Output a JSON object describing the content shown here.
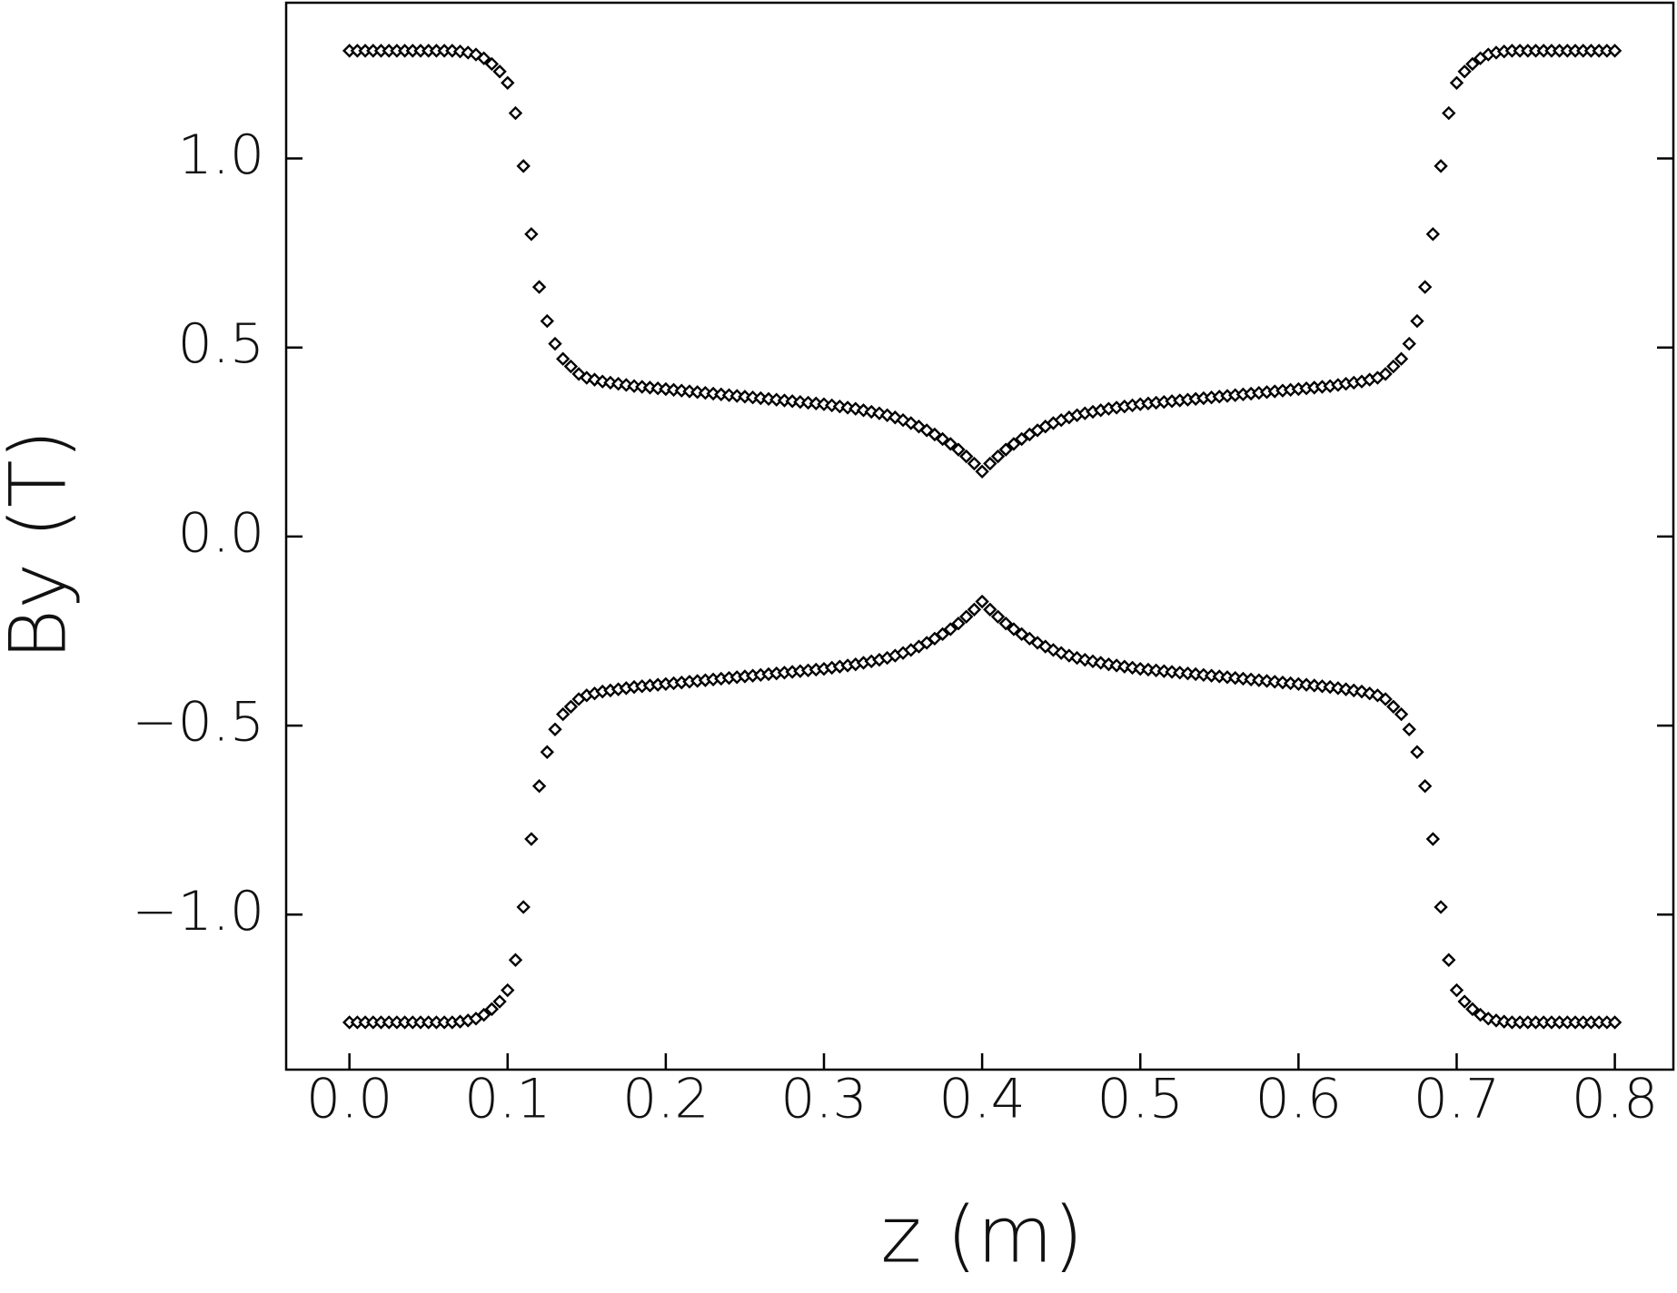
{
  "chart_data": {
    "type": "scatter",
    "xlabel": "z (m)",
    "ylabel": "By (T)",
    "x": [
      0,
      0.005,
      0.01,
      0.015,
      0.02,
      0.025,
      0.03,
      0.035,
      0.04,
      0.045,
      0.05,
      0.055,
      0.06,
      0.065,
      0.07,
      0.075,
      0.08,
      0.085,
      0.09,
      0.095,
      0.1,
      0.105,
      0.11,
      0.115,
      0.12,
      0.125,
      0.13,
      0.135,
      0.14,
      0.145,
      0.15,
      0.155,
      0.16,
      0.165,
      0.17,
      0.175,
      0.18,
      0.185,
      0.19,
      0.195,
      0.2,
      0.205,
      0.21,
      0.215,
      0.22,
      0.225,
      0.23,
      0.235,
      0.24,
      0.245,
      0.25,
      0.255,
      0.26,
      0.265,
      0.27,
      0.275,
      0.28,
      0.285,
      0.29,
      0.295,
      0.3,
      0.305,
      0.31,
      0.315,
      0.32,
      0.325,
      0.33,
      0.335,
      0.34,
      0.345,
      0.35,
      0.355,
      0.36,
      0.365,
      0.37,
      0.375,
      0.38,
      0.385,
      0.39,
      0.395,
      0.4,
      0.405,
      0.41,
      0.415,
      0.42,
      0.425,
      0.43,
      0.435,
      0.44,
      0.445,
      0.45,
      0.455,
      0.46,
      0.465,
      0.47,
      0.475,
      0.48,
      0.485,
      0.49,
      0.495,
      0.5,
      0.505,
      0.51,
      0.515,
      0.52,
      0.525,
      0.53,
      0.535,
      0.54,
      0.545,
      0.55,
      0.555,
      0.56,
      0.565,
      0.57,
      0.575,
      0.58,
      0.585,
      0.59,
      0.595,
      0.6,
      0.605,
      0.61,
      0.615,
      0.62,
      0.625,
      0.63,
      0.635,
      0.64,
      0.645,
      0.65,
      0.655,
      0.66,
      0.665,
      0.67,
      0.675,
      0.68,
      0.685,
      0.69,
      0.695,
      0.7,
      0.705,
      0.71,
      0.715,
      0.72,
      0.725,
      0.73,
      0.735,
      0.74,
      0.745,
      0.75,
      0.755,
      0.76,
      0.765,
      0.77,
      0.775,
      0.78,
      0.785,
      0.79,
      0.795,
      0.8
    ],
    "series": [
      {
        "color": "#000000",
        "values": [
          1.285,
          1.285,
          1.285,
          1.285,
          1.285,
          1.285,
          1.285,
          1.285,
          1.285,
          1.285,
          1.285,
          1.285,
          1.285,
          1.285,
          1.283,
          1.28,
          1.275,
          1.265,
          1.25,
          1.23,
          1.2,
          1.12,
          0.98,
          0.8,
          0.66,
          0.57,
          0.51,
          0.47,
          0.45,
          0.43,
          0.42,
          0.415,
          0.41,
          0.407,
          0.404,
          0.401,
          0.398,
          0.396,
          0.394,
          0.392,
          0.39,
          0.388,
          0.386,
          0.384,
          0.382,
          0.38,
          0.378,
          0.376,
          0.374,
          0.372,
          0.37,
          0.368,
          0.366,
          0.364,
          0.362,
          0.36,
          0.358,
          0.356,
          0.354,
          0.352,
          0.35,
          0.347,
          0.344,
          0.341,
          0.338,
          0.334,
          0.33,
          0.326,
          0.321,
          0.315,
          0.308,
          0.3,
          0.291,
          0.281,
          0.27,
          0.258,
          0.245,
          0.23,
          0.212,
          0.193,
          0.172,
          0.193,
          0.212,
          0.23,
          0.245,
          0.258,
          0.27,
          0.281,
          0.291,
          0.3,
          0.308,
          0.315,
          0.321,
          0.326,
          0.33,
          0.334,
          0.338,
          0.341,
          0.344,
          0.347,
          0.35,
          0.352,
          0.354,
          0.356,
          0.358,
          0.36,
          0.362,
          0.364,
          0.366,
          0.368,
          0.37,
          0.372,
          0.374,
          0.376,
          0.378,
          0.38,
          0.382,
          0.384,
          0.386,
          0.388,
          0.39,
          0.392,
          0.394,
          0.396,
          0.398,
          0.401,
          0.404,
          0.407,
          0.41,
          0.415,
          0.42,
          0.43,
          0.45,
          0.47,
          0.51,
          0.57,
          0.66,
          0.8,
          0.98,
          1.12,
          1.2,
          1.23,
          1.25,
          1.265,
          1.275,
          1.28,
          1.283,
          1.285,
          1.285,
          1.285,
          1.285,
          1.285,
          1.285,
          1.285,
          1.285,
          1.285,
          1.285,
          1.285,
          1.285,
          1.285,
          1.285
        ]
      },
      {
        "color": "#000000",
        "values": [
          -1.285,
          -1.285,
          -1.285,
          -1.285,
          -1.285,
          -1.285,
          -1.285,
          -1.285,
          -1.285,
          -1.285,
          -1.285,
          -1.285,
          -1.285,
          -1.285,
          -1.283,
          -1.28,
          -1.275,
          -1.265,
          -1.25,
          -1.23,
          -1.2,
          -1.12,
          -0.98,
          -0.8,
          -0.66,
          -0.57,
          -0.51,
          -0.47,
          -0.45,
          -0.43,
          -0.42,
          -0.415,
          -0.41,
          -0.407,
          -0.404,
          -0.401,
          -0.398,
          -0.396,
          -0.394,
          -0.392,
          -0.39,
          -0.388,
          -0.386,
          -0.384,
          -0.382,
          -0.38,
          -0.378,
          -0.376,
          -0.374,
          -0.372,
          -0.37,
          -0.368,
          -0.366,
          -0.364,
          -0.362,
          -0.36,
          -0.358,
          -0.356,
          -0.354,
          -0.352,
          -0.35,
          -0.347,
          -0.344,
          -0.341,
          -0.338,
          -0.334,
          -0.33,
          -0.326,
          -0.321,
          -0.315,
          -0.308,
          -0.3,
          -0.291,
          -0.281,
          -0.27,
          -0.258,
          -0.245,
          -0.23,
          -0.212,
          -0.193,
          -0.172,
          -0.193,
          -0.212,
          -0.23,
          -0.245,
          -0.258,
          -0.27,
          -0.281,
          -0.291,
          -0.3,
          -0.308,
          -0.315,
          -0.321,
          -0.326,
          -0.33,
          -0.334,
          -0.338,
          -0.341,
          -0.344,
          -0.347,
          -0.35,
          -0.352,
          -0.354,
          -0.356,
          -0.358,
          -0.36,
          -0.362,
          -0.364,
          -0.366,
          -0.368,
          -0.37,
          -0.372,
          -0.374,
          -0.376,
          -0.378,
          -0.38,
          -0.382,
          -0.384,
          -0.386,
          -0.388,
          -0.39,
          -0.392,
          -0.394,
          -0.396,
          -0.398,
          -0.401,
          -0.404,
          -0.407,
          -0.41,
          -0.415,
          -0.42,
          -0.43,
          -0.45,
          -0.47,
          -0.51,
          -0.57,
          -0.66,
          -0.8,
          -0.98,
          -1.12,
          -1.2,
          -1.23,
          -1.25,
          -1.265,
          -1.275,
          -1.28,
          -1.283,
          -1.285,
          -1.285,
          -1.285,
          -1.285,
          -1.285,
          -1.285,
          -1.285,
          -1.285,
          -1.285,
          -1.285,
          -1.285,
          -1.285,
          -1.285,
          -1.285
        ]
      }
    ],
    "xlim": [
      -0.04,
      0.837
    ],
    "ylim": [
      -1.41,
      1.412
    ],
    "xticks": [
      {
        "value": 0,
        "label": "0.0"
      },
      0.1,
      0.2,
      0.3,
      0.4,
      0.5,
      0.6,
      0.7,
      0.8
    ],
    "yticks": [
      {
        "value": -1,
        "label": "−1.0"
      },
      {
        "value": -0.5,
        "label": "−0.5"
      },
      {
        "value": 0,
        "label": "0.0"
      },
      0.5,
      {
        "value": 1,
        "label": "1.0"
      }
    ],
    "grid": false
  }
}
